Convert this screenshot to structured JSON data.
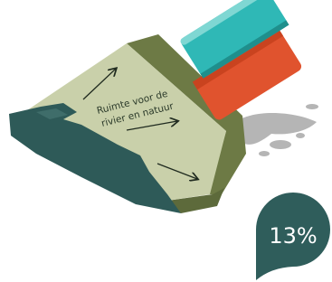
{
  "illustration": {
    "label_lines": [
      "Ruimte voor de",
      "rivier en natuur"
    ],
    "badge": "13%"
  }
}
